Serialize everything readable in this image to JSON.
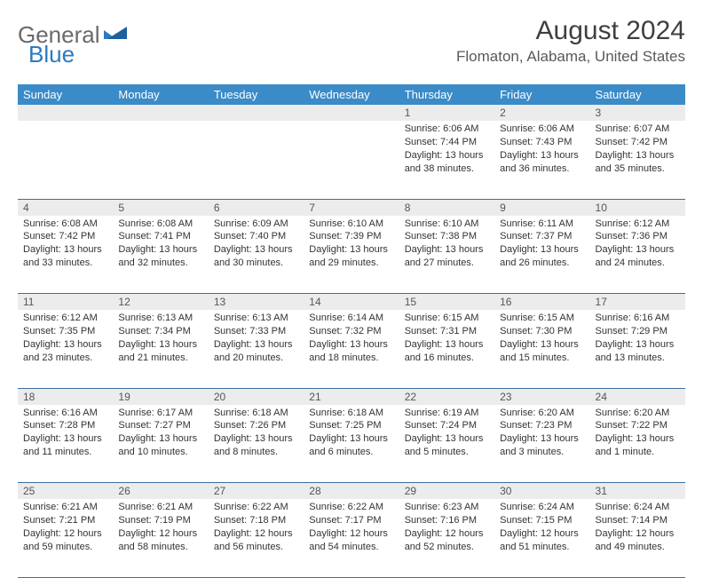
{
  "brand": {
    "word1": "General",
    "word2": "Blue"
  },
  "title": "August 2024",
  "location": "Flomaton, Alabama, United States",
  "colors": {
    "header_bg": "#3b8bc8",
    "header_text": "#ffffff",
    "daynum_bg": "#ececec",
    "row_border": "#3b6fa0",
    "logo_gray": "#6a6a6a",
    "logo_blue": "#2b7bbf"
  },
  "dayNames": [
    "Sunday",
    "Monday",
    "Tuesday",
    "Wednesday",
    "Thursday",
    "Friday",
    "Saturday"
  ],
  "weeks": [
    [
      null,
      null,
      null,
      null,
      {
        "n": "1",
        "sr": "6:06 AM",
        "ss": "7:44 PM",
        "dl": "13 hours and 38 minutes."
      },
      {
        "n": "2",
        "sr": "6:06 AM",
        "ss": "7:43 PM",
        "dl": "13 hours and 36 minutes."
      },
      {
        "n": "3",
        "sr": "6:07 AM",
        "ss": "7:42 PM",
        "dl": "13 hours and 35 minutes."
      }
    ],
    [
      {
        "n": "4",
        "sr": "6:08 AM",
        "ss": "7:42 PM",
        "dl": "13 hours and 33 minutes."
      },
      {
        "n": "5",
        "sr": "6:08 AM",
        "ss": "7:41 PM",
        "dl": "13 hours and 32 minutes."
      },
      {
        "n": "6",
        "sr": "6:09 AM",
        "ss": "7:40 PM",
        "dl": "13 hours and 30 minutes."
      },
      {
        "n": "7",
        "sr": "6:10 AM",
        "ss": "7:39 PM",
        "dl": "13 hours and 29 minutes."
      },
      {
        "n": "8",
        "sr": "6:10 AM",
        "ss": "7:38 PM",
        "dl": "13 hours and 27 minutes."
      },
      {
        "n": "9",
        "sr": "6:11 AM",
        "ss": "7:37 PM",
        "dl": "13 hours and 26 minutes."
      },
      {
        "n": "10",
        "sr": "6:12 AM",
        "ss": "7:36 PM",
        "dl": "13 hours and 24 minutes."
      }
    ],
    [
      {
        "n": "11",
        "sr": "6:12 AM",
        "ss": "7:35 PM",
        "dl": "13 hours and 23 minutes."
      },
      {
        "n": "12",
        "sr": "6:13 AM",
        "ss": "7:34 PM",
        "dl": "13 hours and 21 minutes."
      },
      {
        "n": "13",
        "sr": "6:13 AM",
        "ss": "7:33 PM",
        "dl": "13 hours and 20 minutes."
      },
      {
        "n": "14",
        "sr": "6:14 AM",
        "ss": "7:32 PM",
        "dl": "13 hours and 18 minutes."
      },
      {
        "n": "15",
        "sr": "6:15 AM",
        "ss": "7:31 PM",
        "dl": "13 hours and 16 minutes."
      },
      {
        "n": "16",
        "sr": "6:15 AM",
        "ss": "7:30 PM",
        "dl": "13 hours and 15 minutes."
      },
      {
        "n": "17",
        "sr": "6:16 AM",
        "ss": "7:29 PM",
        "dl": "13 hours and 13 minutes."
      }
    ],
    [
      {
        "n": "18",
        "sr": "6:16 AM",
        "ss": "7:28 PM",
        "dl": "13 hours and 11 minutes."
      },
      {
        "n": "19",
        "sr": "6:17 AM",
        "ss": "7:27 PM",
        "dl": "13 hours and 10 minutes."
      },
      {
        "n": "20",
        "sr": "6:18 AM",
        "ss": "7:26 PM",
        "dl": "13 hours and 8 minutes."
      },
      {
        "n": "21",
        "sr": "6:18 AM",
        "ss": "7:25 PM",
        "dl": "13 hours and 6 minutes."
      },
      {
        "n": "22",
        "sr": "6:19 AM",
        "ss": "7:24 PM",
        "dl": "13 hours and 5 minutes."
      },
      {
        "n": "23",
        "sr": "6:20 AM",
        "ss": "7:23 PM",
        "dl": "13 hours and 3 minutes."
      },
      {
        "n": "24",
        "sr": "6:20 AM",
        "ss": "7:22 PM",
        "dl": "13 hours and 1 minute."
      }
    ],
    [
      {
        "n": "25",
        "sr": "6:21 AM",
        "ss": "7:21 PM",
        "dl": "12 hours and 59 minutes."
      },
      {
        "n": "26",
        "sr": "6:21 AM",
        "ss": "7:19 PM",
        "dl": "12 hours and 58 minutes."
      },
      {
        "n": "27",
        "sr": "6:22 AM",
        "ss": "7:18 PM",
        "dl": "12 hours and 56 minutes."
      },
      {
        "n": "28",
        "sr": "6:22 AM",
        "ss": "7:17 PM",
        "dl": "12 hours and 54 minutes."
      },
      {
        "n": "29",
        "sr": "6:23 AM",
        "ss": "7:16 PM",
        "dl": "12 hours and 52 minutes."
      },
      {
        "n": "30",
        "sr": "6:24 AM",
        "ss": "7:15 PM",
        "dl": "12 hours and 51 minutes."
      },
      {
        "n": "31",
        "sr": "6:24 AM",
        "ss": "7:14 PM",
        "dl": "12 hours and 49 minutes."
      }
    ]
  ]
}
